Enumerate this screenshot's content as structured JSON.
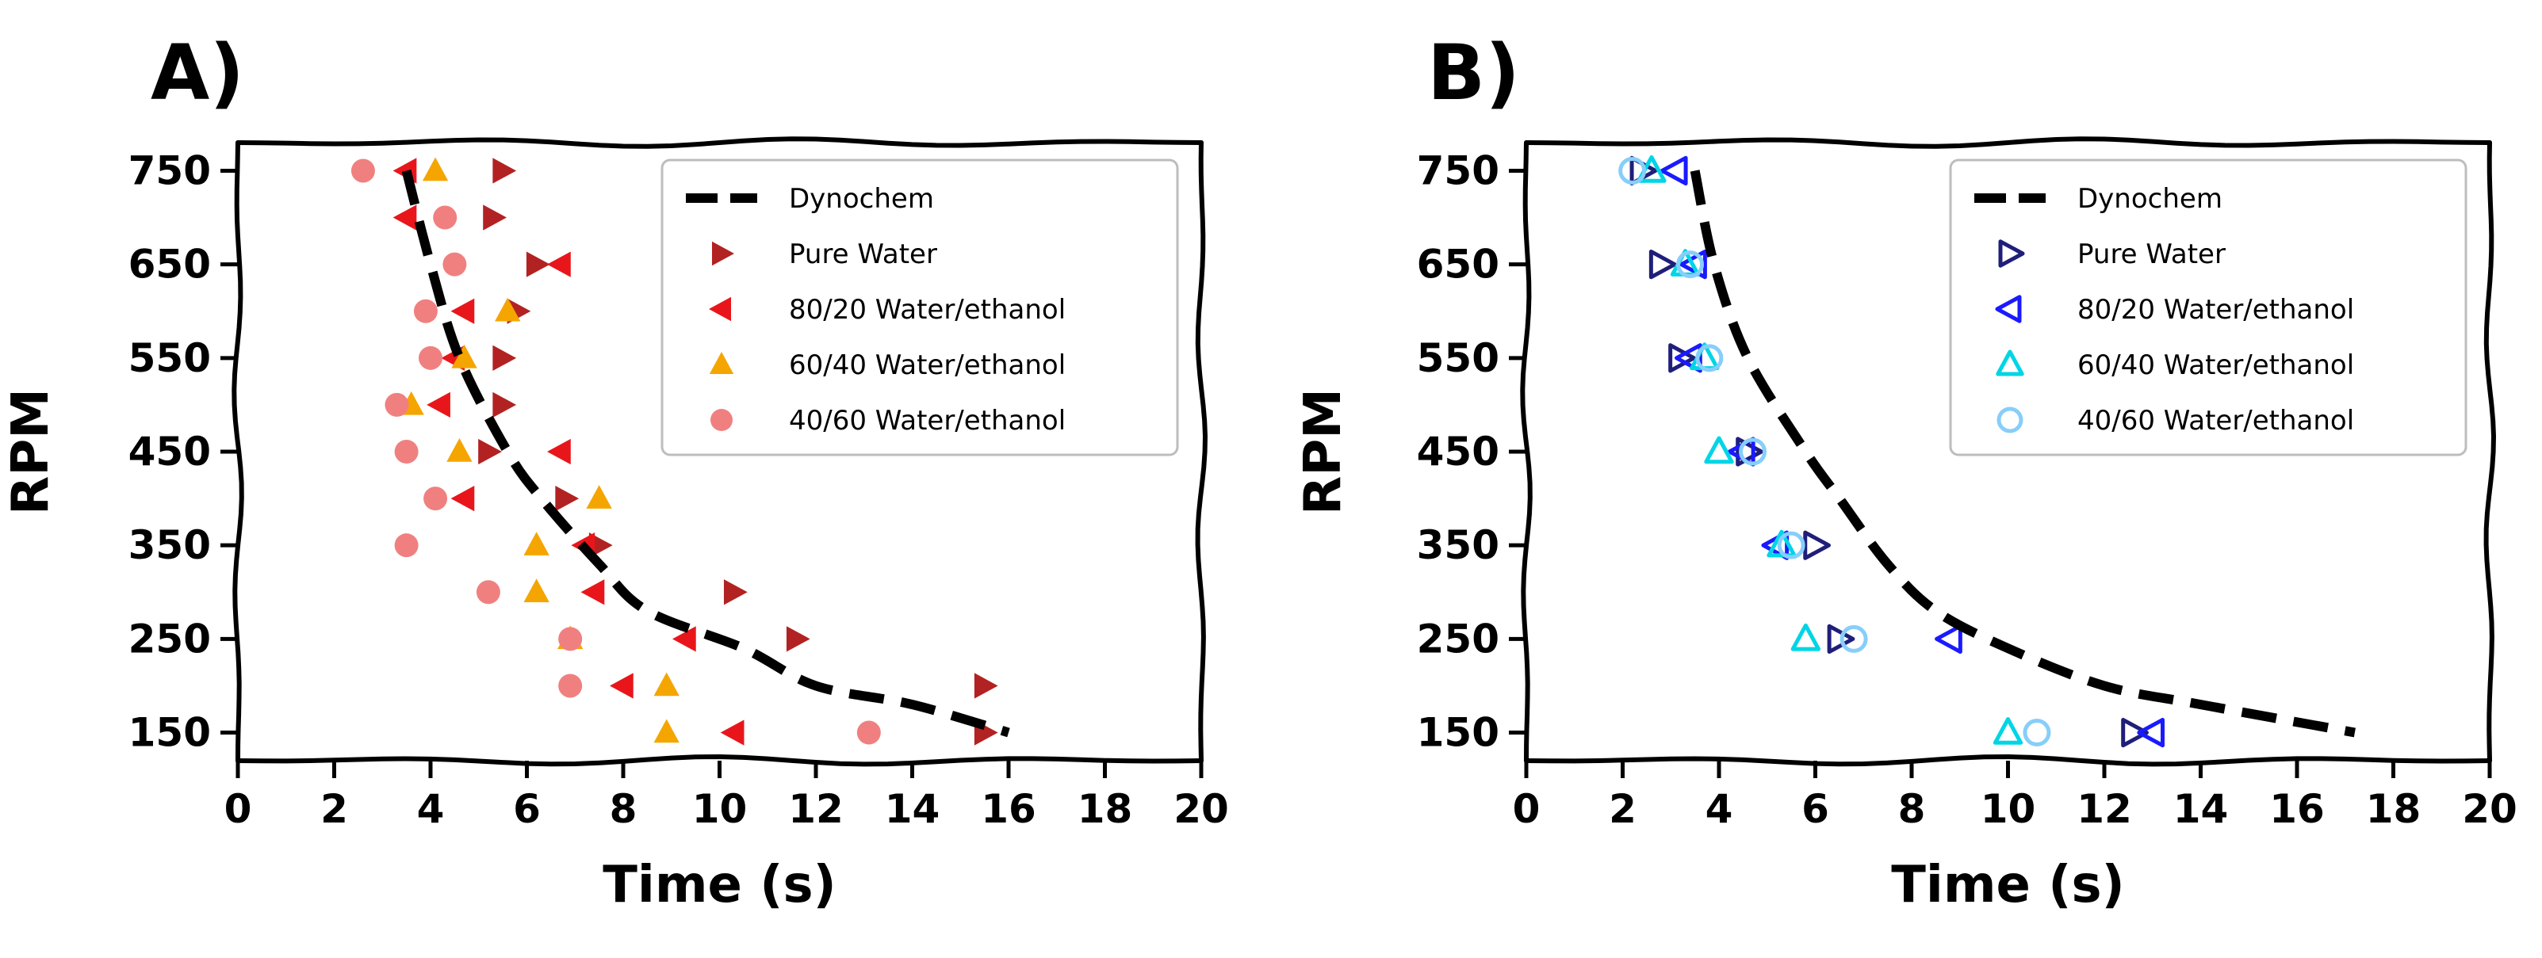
{
  "chart_data": [
    {
      "panel": "A)",
      "type": "scatter",
      "xlabel": "Time (s)",
      "ylabel": "RPM",
      "xlim": [
        0,
        20
      ],
      "ylim": [
        120,
        780
      ],
      "x_ticks": [
        "0",
        "2",
        "4",
        "6",
        "8",
        "10",
        "12",
        "14",
        "16",
        "18",
        "20"
      ],
      "y_ticks": [
        "150",
        "250",
        "350",
        "450",
        "550",
        "650",
        "750"
      ],
      "grid": false,
      "legend_position": "top-right",
      "curve": {
        "name": "Dynochem",
        "color": "#000000",
        "points": [
          [
            3.5,
            750
          ],
          [
            4.0,
            650
          ],
          [
            4.6,
            550
          ],
          [
            5.6,
            450
          ],
          [
            6.3,
            400
          ],
          [
            7.5,
            330
          ],
          [
            8.5,
            280
          ],
          [
            10.5,
            240
          ],
          [
            12.0,
            200
          ],
          [
            14.0,
            180
          ],
          [
            16.0,
            150
          ]
        ]
      },
      "series": [
        {
          "name": "Pure Water",
          "marker": "triangle-right",
          "filled": true,
          "color": "#b22222",
          "points": [
            [
              5.5,
              750
            ],
            [
              5.3,
              700
            ],
            [
              6.2,
              650
            ],
            [
              5.8,
              600
            ],
            [
              5.5,
              550
            ],
            [
              5.5,
              500
            ],
            [
              5.2,
              450
            ],
            [
              6.8,
              400
            ],
            [
              7.5,
              350
            ],
            [
              10.3,
              300
            ],
            [
              11.6,
              250
            ],
            [
              15.5,
              200
            ],
            [
              15.5,
              150
            ]
          ]
        },
        {
          "name": "80/20 Water/ethanol",
          "marker": "triangle-left",
          "filled": true,
          "color": "#e8161b",
          "points": [
            [
              3.5,
              750
            ],
            [
              3.5,
              700
            ],
            [
              6.7,
              650
            ],
            [
              4.7,
              600
            ],
            [
              4.5,
              550
            ],
            [
              4.2,
              500
            ],
            [
              6.7,
              450
            ],
            [
              4.7,
              400
            ],
            [
              7.2,
              350
            ],
            [
              7.4,
              300
            ],
            [
              9.3,
              250
            ],
            [
              8.0,
              200
            ],
            [
              10.3,
              150
            ]
          ]
        },
        {
          "name": "60/40 Water/ethanol",
          "marker": "triangle-up",
          "filled": true,
          "color": "#f5a500",
          "points": [
            [
              4.1,
              750
            ],
            [
              5.6,
              600
            ],
            [
              4.7,
              550
            ],
            [
              3.6,
              500
            ],
            [
              4.6,
              450
            ],
            [
              7.5,
              400
            ],
            [
              6.2,
              350
            ],
            [
              6.2,
              300
            ],
            [
              6.9,
              250
            ],
            [
              8.9,
              200
            ],
            [
              8.9,
              150
            ]
          ]
        },
        {
          "name": "40/60 Water/ethanol",
          "marker": "circle",
          "filled": true,
          "color": "#f08080",
          "points": [
            [
              2.6,
              750
            ],
            [
              4.3,
              700
            ],
            [
              4.5,
              650
            ],
            [
              3.9,
              600
            ],
            [
              4.0,
              550
            ],
            [
              3.3,
              500
            ],
            [
              3.5,
              450
            ],
            [
              4.1,
              400
            ],
            [
              3.5,
              350
            ],
            [
              5.2,
              300
            ],
            [
              6.9,
              250
            ],
            [
              6.9,
              200
            ],
            [
              13.1,
              150
            ]
          ]
        }
      ]
    },
    {
      "panel": "B)",
      "type": "scatter",
      "xlabel": "Time (s)",
      "ylabel": "RPM",
      "xlim": [
        0,
        20
      ],
      "ylim": [
        120,
        780
      ],
      "x_ticks": [
        "0",
        "2",
        "4",
        "6",
        "8",
        "10",
        "12",
        "14",
        "16",
        "18",
        "20"
      ],
      "y_ticks": [
        "150",
        "250",
        "350",
        "450",
        "550",
        "650",
        "750"
      ],
      "grid": false,
      "legend_position": "top-right",
      "curve": {
        "name": "Dynochem",
        "color": "#000000",
        "points": [
          [
            3.5,
            750
          ],
          [
            3.9,
            650
          ],
          [
            4.6,
            550
          ],
          [
            5.8,
            450
          ],
          [
            6.5,
            400
          ],
          [
            7.5,
            330
          ],
          [
            8.5,
            280
          ],
          [
            10.0,
            240
          ],
          [
            12.0,
            200
          ],
          [
            14.0,
            180
          ],
          [
            17.2,
            150
          ]
        ]
      },
      "series": [
        {
          "name": "Pure Water",
          "marker": "triangle-right",
          "filled": false,
          "color": "#1f1f7a",
          "points": [
            [
              2.4,
              750
            ],
            [
              2.8,
              650
            ],
            [
              3.2,
              550
            ],
            [
              4.6,
              450
            ],
            [
              6.0,
              350
            ],
            [
              6.5,
              250
            ],
            [
              12.6,
              150
            ]
          ]
        },
        {
          "name": "80/20 Water/ethanol",
          "marker": "triangle-left",
          "filled": false,
          "color": "#1a1aff",
          "points": [
            [
              3.1,
              750
            ],
            [
              3.5,
              650
            ],
            [
              3.4,
              550
            ],
            [
              4.5,
              450
            ],
            [
              5.2,
              350
            ],
            [
              8.8,
              250
            ],
            [
              13.0,
              150
            ]
          ]
        },
        {
          "name": "60/40 Water/ethanol",
          "marker": "triangle-up",
          "filled": false,
          "color": "#00d5e5",
          "points": [
            [
              2.6,
              750
            ],
            [
              3.3,
              650
            ],
            [
              3.7,
              550
            ],
            [
              4.0,
              450
            ],
            [
              5.3,
              350
            ],
            [
              5.8,
              250
            ],
            [
              10.0,
              150
            ]
          ]
        },
        {
          "name": "40/60 Water/ethanol",
          "marker": "circle",
          "filled": false,
          "color": "#87cefa",
          "points": [
            [
              2.2,
              750
            ],
            [
              3.4,
              650
            ],
            [
              3.8,
              550
            ],
            [
              4.7,
              450
            ],
            [
              5.5,
              350
            ],
            [
              6.8,
              250
            ],
            [
              10.6,
              150
            ]
          ]
        }
      ]
    }
  ]
}
